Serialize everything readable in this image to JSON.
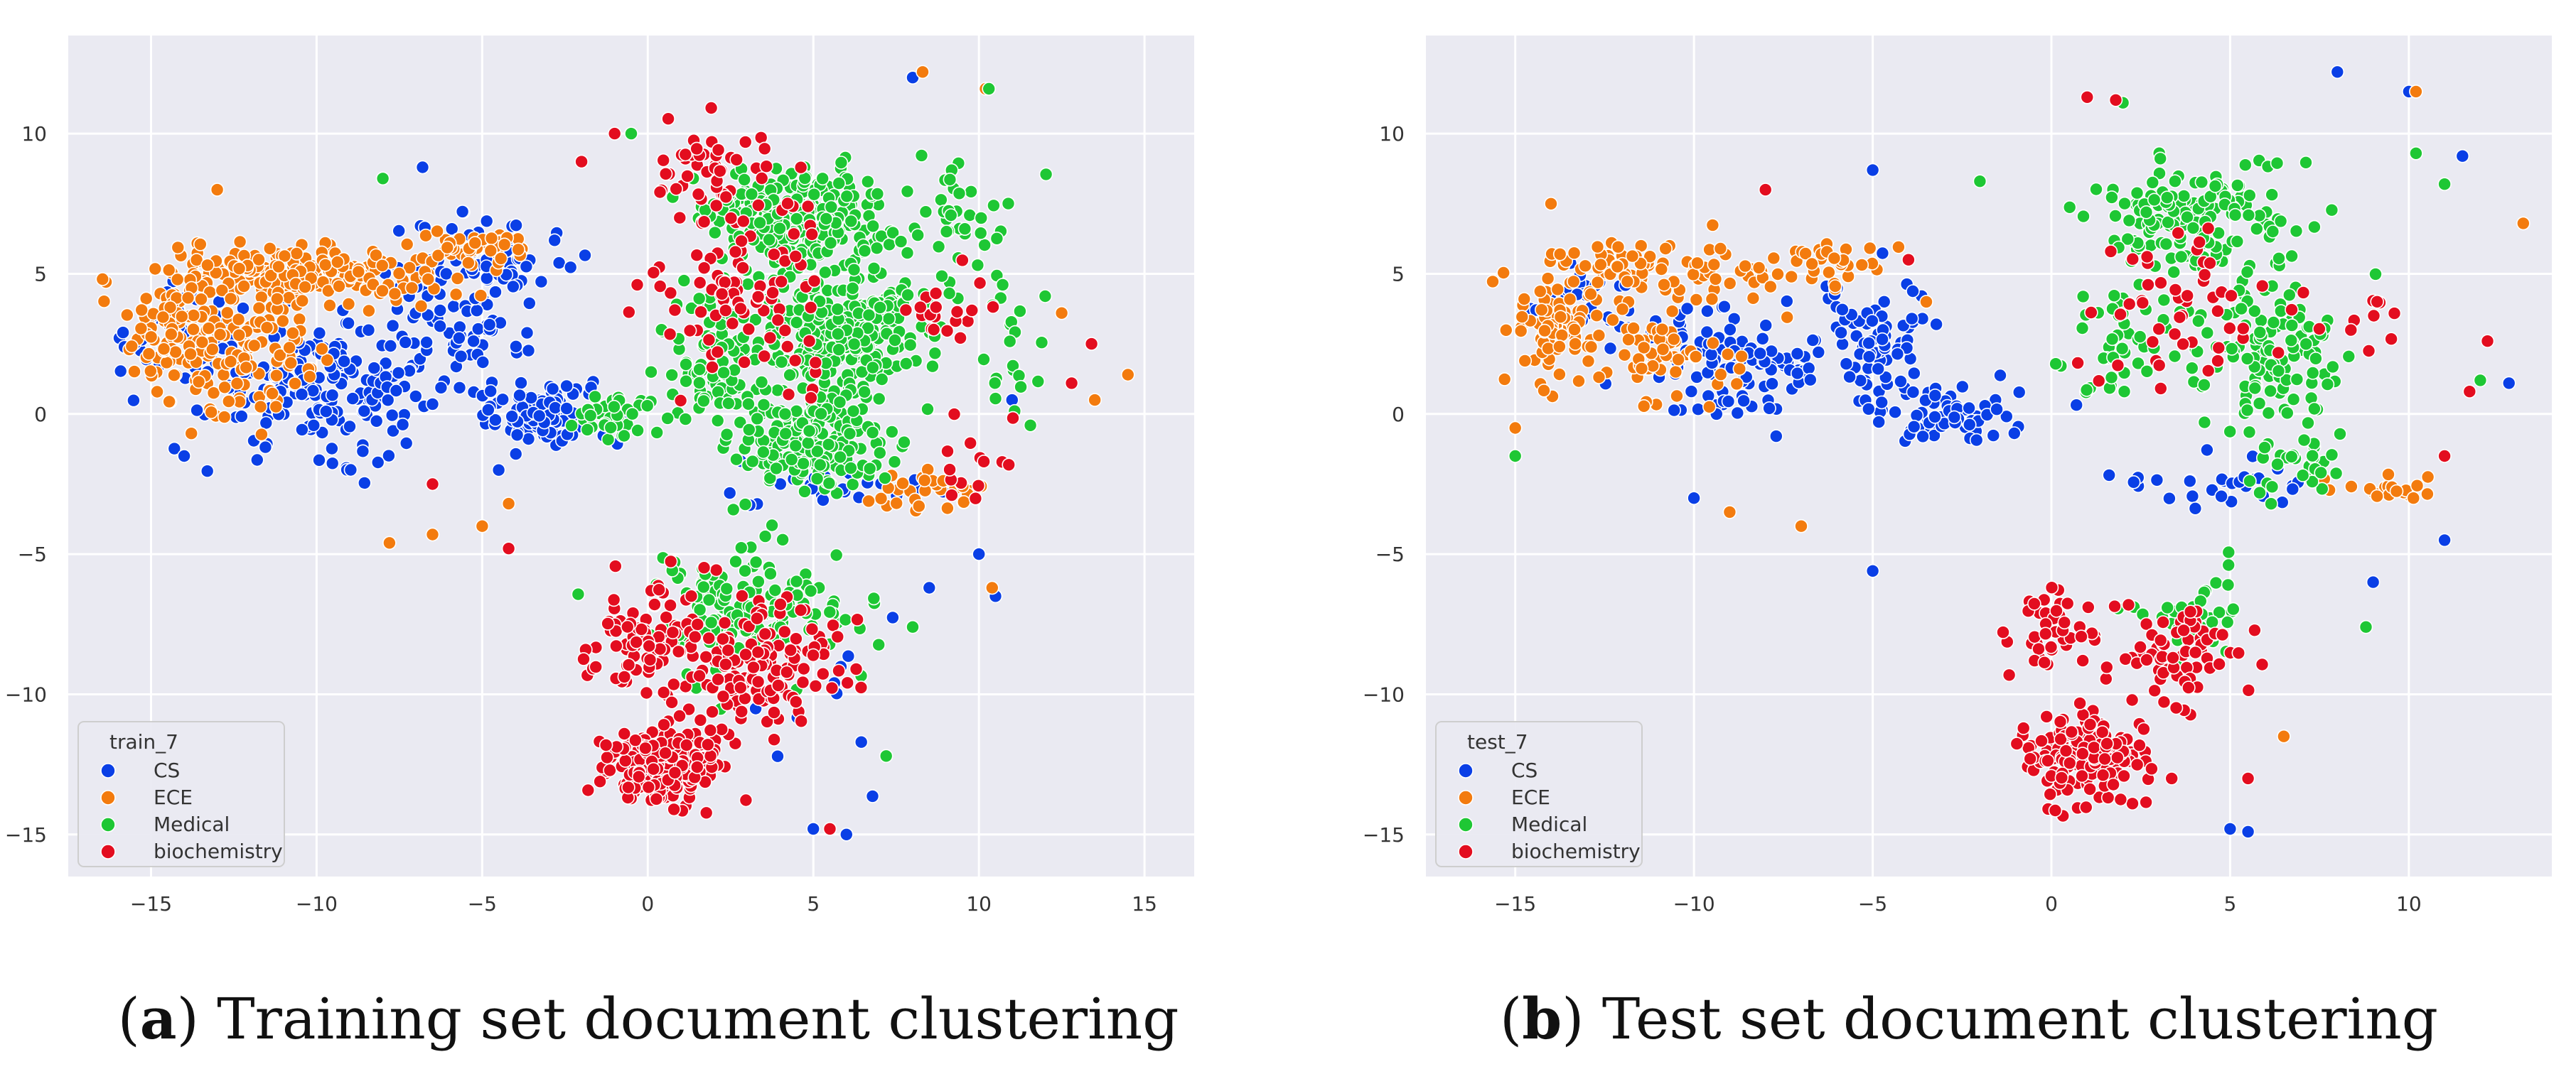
{
  "chart_data": [
    {
      "type": "scatter",
      "caption": {
        "label": "a",
        "open": "(",
        "close": ")",
        "text": " Training set document clustering"
      },
      "legend": {
        "title": "train_7"
      },
      "xlim": [
        -17.5,
        16.5
      ],
      "ylim": [
        -16.5,
        13.5
      ],
      "xticks": [
        -15,
        -10,
        -5,
        0,
        5,
        10,
        15
      ],
      "yticks": [
        -15,
        -10,
        -5,
        0,
        5,
        10
      ],
      "grid": true,
      "series": [
        {
          "name": "CS",
          "color": "#0a3fe6",
          "clusters": [
            [
              -10,
              1,
              3,
              2,
              170
            ],
            [
              -6,
              3,
              2,
              3,
              110
            ],
            [
              -3,
              0,
              2,
              1,
              90
            ],
            [
              -14,
              3,
              1.5,
              2,
              50
            ],
            [
              -4,
              5.5,
              1.5,
              1,
              30
            ],
            [
              6,
              -2.5,
              3,
              0.8,
              30
            ],
            [
              5,
              -10,
              2,
              3,
              10
            ]
          ],
          "points": [
            [
              8,
              12
            ],
            [
              -15.5,
              2.5
            ],
            [
              -14,
              -1.5
            ],
            [
              -6.8,
              8.8
            ],
            [
              10,
              -5
            ],
            [
              6,
              -15
            ],
            [
              5,
              -14.8
            ],
            [
              -4.5,
              -2
            ],
            [
              10.5,
              -6.5
            ],
            [
              8.5,
              -6.2
            ],
            [
              11,
              0.5
            ]
          ]
        },
        {
          "name": "ECE",
          "color": "#f37b0e",
          "clusters": [
            [
              -11.5,
              5,
              3.5,
              1,
              150
            ],
            [
              -14,
              3,
              1.5,
              2,
              100
            ],
            [
              -12,
              2,
              2,
              2,
              90
            ],
            [
              -8,
              5,
              2.5,
              1,
              60
            ],
            [
              -5,
              6,
              1.5,
              0.6,
              40
            ],
            [
              8.5,
              -2.8,
              1.5,
              0.6,
              30
            ]
          ],
          "points": [
            [
              8.3,
              12.2
            ],
            [
              10.2,
              11.6
            ],
            [
              13.5,
              0.5
            ],
            [
              14.5,
              1.4
            ],
            [
              12.5,
              3.6
            ],
            [
              -7.8,
              -4.6
            ],
            [
              -6.5,
              -4.3
            ],
            [
              -5,
              -4
            ],
            [
              -13,
              8
            ],
            [
              -4.2,
              -3.2
            ],
            [
              10.4,
              -6.2
            ]
          ]
        },
        {
          "name": "Medical",
          "color": "#1ec734",
          "clusters": [
            [
              4.5,
              7,
              2.5,
              1.5,
              300
            ],
            [
              6,
              3,
              2.5,
              2,
              250
            ],
            [
              5,
              -1,
              2,
              1.5,
              200
            ],
            [
              2,
              2,
              1.5,
              2.5,
              100
            ],
            [
              3,
              -7,
              2.5,
              2,
              150
            ],
            [
              -1,
              0,
              1,
              0.8,
              40
            ],
            [
              9.5,
              7,
              1.5,
              2,
              40
            ],
            [
              11,
              2,
              1,
              2,
              20
            ]
          ],
          "points": [
            [
              10.3,
              11.6
            ],
            [
              -0.5,
              10
            ],
            [
              7.2,
              -12.2
            ],
            [
              8,
              -7.6
            ],
            [
              12,
              4.2
            ],
            [
              -8,
              8.4
            ]
          ]
        },
        {
          "name": "biochemistry",
          "color": "#e30d1f",
          "clusters": [
            [
              0.5,
              -12.5,
              1.5,
              1.2,
              250
            ],
            [
              3,
              -9,
              2.5,
              2,
              150
            ],
            [
              0,
              -8,
              1.5,
              2,
              80
            ],
            [
              3,
              5,
              2.5,
              4,
              100
            ],
            [
              2,
              8.5,
              1.5,
              1.5,
              40
            ],
            [
              9,
              3.5,
              1,
              1.5,
              20
            ],
            [
              10,
              -2,
              1,
              1.5,
              15
            ]
          ],
          "points": [
            [
              -6.5,
              -2.5
            ],
            [
              -4.2,
              -4.8
            ],
            [
              12.8,
              1.1
            ],
            [
              13.4,
              2.5
            ],
            [
              -2,
              9
            ],
            [
              -1,
              10
            ],
            [
              5.5,
              -14.8
            ]
          ]
        }
      ]
    },
    {
      "type": "scatter",
      "caption": {
        "label": "b",
        "open": "(",
        "close": ")",
        "text": " Test set document clustering"
      },
      "legend": {
        "title": "test_7"
      },
      "xlim": [
        -17.5,
        14
      ],
      "ylim": [
        -16.5,
        13.5
      ],
      "xticks": [
        -15,
        -10,
        -5,
        0,
        5,
        10
      ],
      "yticks": [
        -15,
        -10,
        -5,
        0,
        5,
        10
      ],
      "grid": true,
      "series": [
        {
          "name": "CS",
          "color": "#0a3fe6",
          "clusters": [
            [
              -9,
              2,
              2.5,
              2,
              110
            ],
            [
              -5,
              3,
              1.5,
              2,
              70
            ],
            [
              -3,
              0,
              2,
              1,
              70
            ],
            [
              -13,
              4,
              1.5,
              1.2,
              30
            ],
            [
              5,
              -2.5,
              2.5,
              0.8,
              30
            ]
          ],
          "points": [
            [
              8,
              12.2
            ],
            [
              10,
              11.5
            ],
            [
              11.5,
              9.2
            ],
            [
              12.8,
              1.1
            ],
            [
              11,
              -4.5
            ],
            [
              9,
              -6
            ],
            [
              5,
              -14.8
            ],
            [
              5.5,
              -14.9
            ],
            [
              -5,
              8.7
            ],
            [
              -5,
              -5.6
            ],
            [
              -10,
              -3
            ]
          ]
        },
        {
          "name": "ECE",
          "color": "#f37b0e",
          "clusters": [
            [
              -11,
              5,
              3,
              1,
              100
            ],
            [
              -14,
              3,
              1.2,
              1.5,
              70
            ],
            [
              -11,
              2,
              2,
              1.5,
              60
            ],
            [
              -6,
              5.5,
              1.5,
              0.8,
              30
            ],
            [
              9.5,
              -2.8,
              1.2,
              0.5,
              20
            ]
          ],
          "points": [
            [
              13.2,
              6.8
            ],
            [
              10.2,
              11.5
            ],
            [
              6.5,
              -11.5
            ],
            [
              -7,
              -4
            ],
            [
              -9,
              -3.5
            ],
            [
              -14,
              7.5
            ],
            [
              -15,
              -0.5
            ],
            [
              -3.5,
              4
            ]
          ]
        },
        {
          "name": "Medical",
          "color": "#1ec734",
          "clusters": [
            [
              4,
              7,
              2.5,
              1.8,
              150
            ],
            [
              6,
              2,
              2,
              2.5,
              120
            ],
            [
              2,
              3,
              1.5,
              2.5,
              50
            ],
            [
              7,
              -2,
              1.5,
              1,
              30
            ],
            [
              4,
              -7,
              1.5,
              1.5,
              40
            ]
          ],
          "points": [
            [
              11,
              8.2
            ],
            [
              10.2,
              9.3
            ],
            [
              12,
              1.2
            ],
            [
              8.8,
              -7.6
            ],
            [
              2,
              11.1
            ],
            [
              -2,
              8.3
            ],
            [
              -15,
              -1.5
            ]
          ]
        },
        {
          "name": "biochemistry",
          "color": "#e30d1f",
          "clusters": [
            [
              1,
              -12.3,
              1.5,
              1.2,
              180
            ],
            [
              3.5,
              -8.5,
              1.8,
              1.8,
              70
            ],
            [
              0,
              -7.5,
              1,
              1.5,
              40
            ],
            [
              4,
              3,
              2.5,
              3,
              50
            ],
            [
              9,
              3,
              0.8,
              1,
              10
            ]
          ],
          "points": [
            [
              1,
              11.3
            ],
            [
              1.8,
              11.2
            ],
            [
              11.7,
              0.8
            ],
            [
              12.2,
              2.6
            ],
            [
              11,
              -1.5
            ],
            [
              -8,
              8
            ],
            [
              -4,
              5.5
            ],
            [
              5.5,
              -13
            ]
          ]
        }
      ]
    }
  ]
}
